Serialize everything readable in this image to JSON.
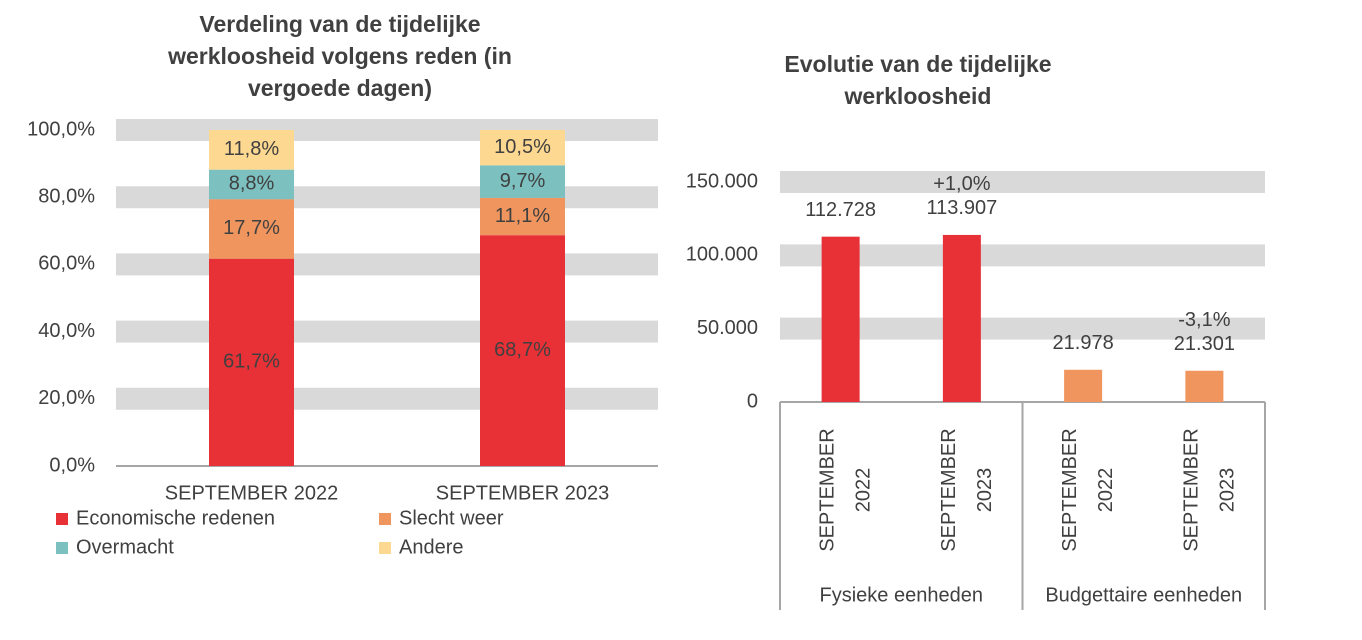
{
  "chart_data": [
    {
      "type": "stacked_bar",
      "title": "Verdeling van de tijdelijke werkloosheid volgens reden (in vergoede dagen)",
      "categories": [
        "SEPTEMBER 2022",
        "SEPTEMBER 2023"
      ],
      "series": [
        {
          "name": "Economische redenen",
          "color": "#e83137",
          "values": [
            61.7,
            68.7
          ],
          "value_labels": [
            "61,7%",
            "68,7%"
          ]
        },
        {
          "name": "Slecht weer",
          "color": "#f0955e",
          "values": [
            17.7,
            11.1
          ],
          "value_labels": [
            "17,7%",
            "11,1%"
          ]
        },
        {
          "name": "Overmacht",
          "color": "#7cc0bf",
          "values": [
            8.8,
            9.7
          ],
          "value_labels": [
            "8,8%",
            "9,7%"
          ]
        },
        {
          "name": "Andere",
          "color": "#fdd890",
          "values": [
            11.8,
            10.5
          ],
          "value_labels": [
            "11,8%",
            "10,5%"
          ]
        }
      ],
      "ylim": [
        0,
        100
      ],
      "yticks": [
        {
          "value": 0,
          "label": "0,0%"
        },
        {
          "value": 20,
          "label": "20,0%"
        },
        {
          "value": 40,
          "label": "40,0%"
        },
        {
          "value": 60,
          "label": "60,0%"
        },
        {
          "value": 80,
          "label": "80,0%"
        },
        {
          "value": 100,
          "label": "100,0%"
        }
      ],
      "grid": true
    },
    {
      "type": "bar",
      "title": "Evolutie van de tijdelijke werkloosheid",
      "categories": [
        "SEPTEMBER 2022",
        "SEPTEMBER 2023",
        "SEPTEMBER 2022",
        "SEPTEMBER 2023"
      ],
      "groups": [
        "Fysieke eenheden",
        "Budgettaire eenheden"
      ],
      "values": [
        112728,
        113907,
        21978,
        21301
      ],
      "value_labels": [
        "112.728",
        "113.907",
        "21.978",
        "21.301"
      ],
      "colors": [
        "#e83137",
        "#e83137",
        "#f0955e",
        "#f0955e"
      ],
      "annotations": [
        "+1,0%",
        "-3,1%"
      ],
      "ylim": [
        0,
        150000
      ],
      "yticks": [
        0,
        {
          "value": 50000,
          "label": "50.000"
        },
        {
          "value": 100000,
          "label": "100.000"
        },
        {
          "value": 150000,
          "label": "150.000"
        }
      ],
      "grid": true
    }
  ]
}
